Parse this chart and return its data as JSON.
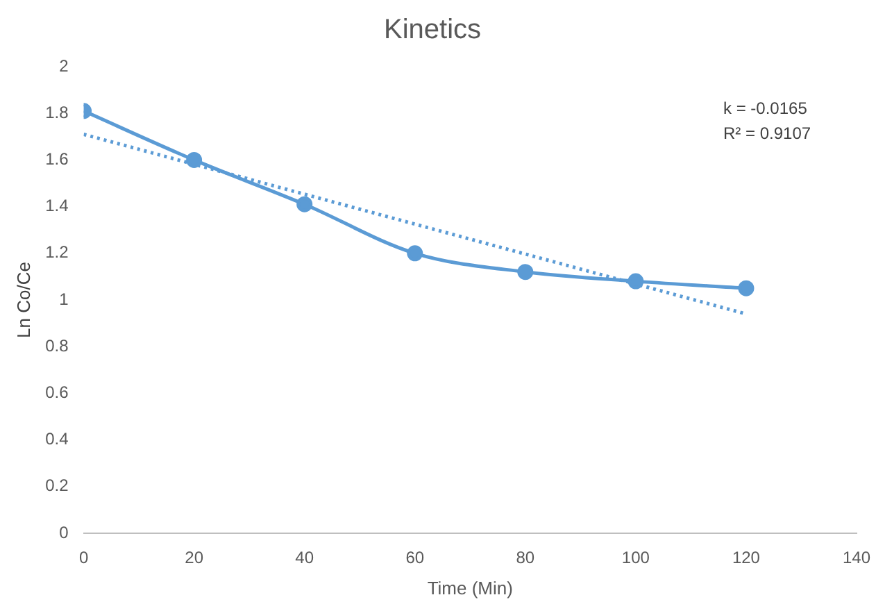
{
  "chart_data": {
    "type": "line",
    "title": "Kinetics",
    "xlabel": "Time (Min)",
    "ylabel": "Ln Co/Ce",
    "x": [
      0,
      20,
      40,
      60,
      80,
      100,
      120
    ],
    "series": [
      {
        "color": "#5b9bd5",
        "values": [
          1.81,
          1.6,
          1.41,
          1.2,
          1.12,
          1.08,
          1.05
        ],
        "marker": "circle",
        "line_style": "solid"
      },
      {
        "color": "#5b9bd5",
        "x": [
          0,
          120
        ],
        "values": [
          1.71,
          0.94
        ],
        "marker": "none",
        "line_style": "dotted"
      }
    ],
    "xlim": [
      0,
      140
    ],
    "xticks": [
      0,
      20,
      40,
      60,
      80,
      100,
      120,
      140
    ],
    "ylim": [
      0,
      2
    ],
    "yticks": [
      0,
      0.2,
      0.4,
      0.6,
      0.8,
      1,
      1.2,
      1.4,
      1.6,
      1.8,
      2
    ],
    "annotations": [
      "k = -0.0165",
      "R² = 0.9107"
    ],
    "grid": false,
    "legend": false
  }
}
